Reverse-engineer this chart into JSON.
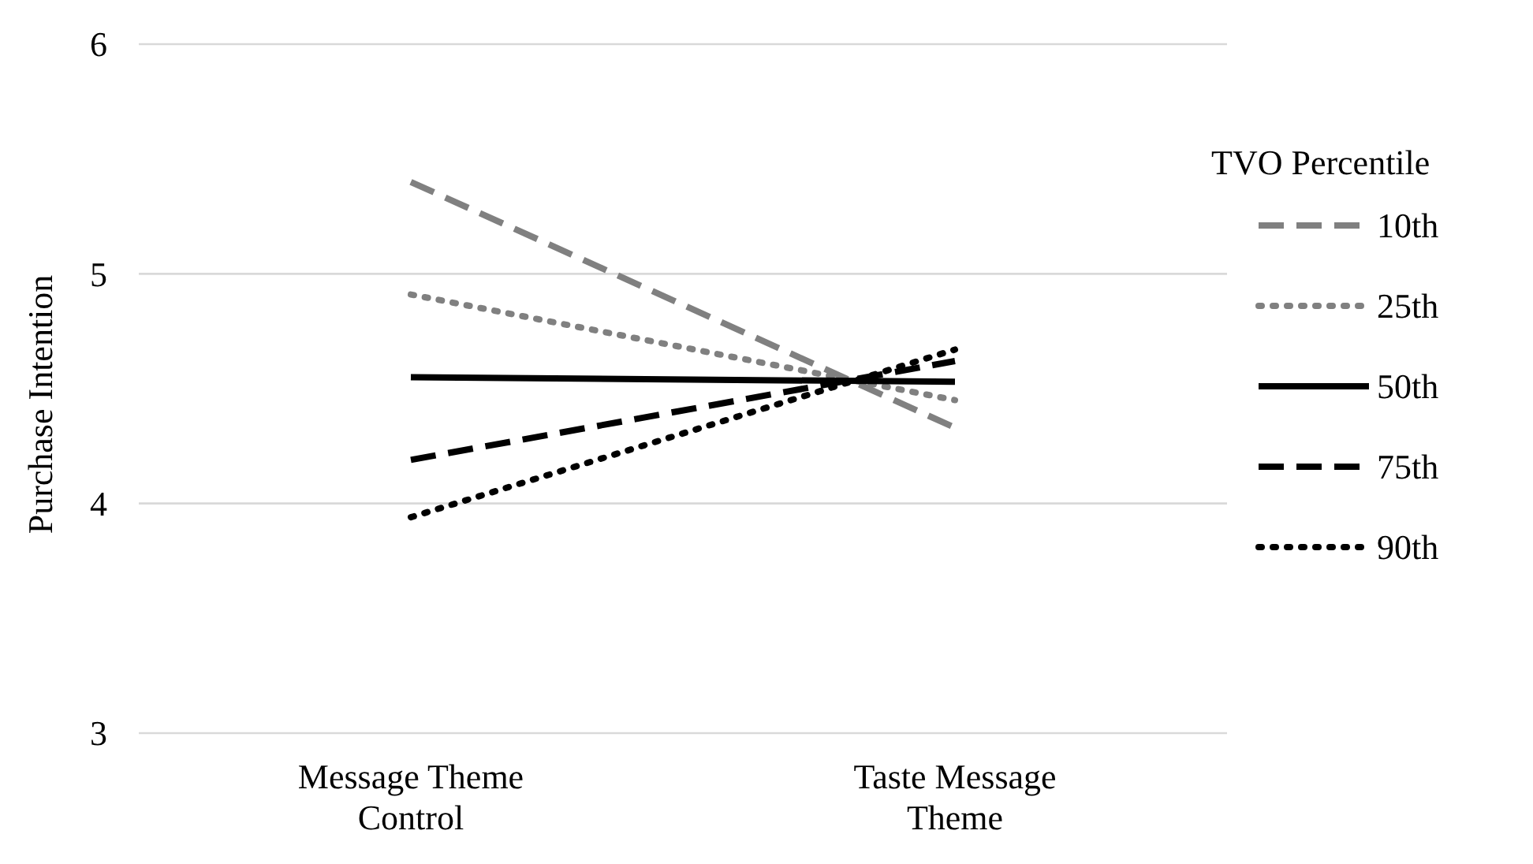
{
  "chart_data": {
    "type": "line",
    "ylabel": "Purchase Intention",
    "legend_title": "TVO Percentile",
    "categories": [
      "Message Theme Control",
      "Taste Message Theme"
    ],
    "ylim": [
      3,
      6
    ],
    "yticks": [
      3,
      4,
      5,
      6
    ],
    "grid": "y",
    "legend": "right",
    "marker": "none",
    "series": [
      {
        "name": "10th",
        "color": "#808080",
        "line_style": "dashed",
        "values": [
          5.4,
          4.33
        ]
      },
      {
        "name": "25th",
        "color": "#808080",
        "line_style": "dotted",
        "values": [
          4.91,
          4.45
        ]
      },
      {
        "name": "50th",
        "color": "#000000",
        "line_style": "solid",
        "values": [
          4.55,
          4.53
        ]
      },
      {
        "name": "75th",
        "color": "#000000",
        "line_style": "dashed",
        "values": [
          4.19,
          4.62
        ]
      },
      {
        "name": "90th",
        "color": "#000000",
        "line_style": "dotted",
        "values": [
          3.94,
          4.67
        ]
      }
    ]
  }
}
